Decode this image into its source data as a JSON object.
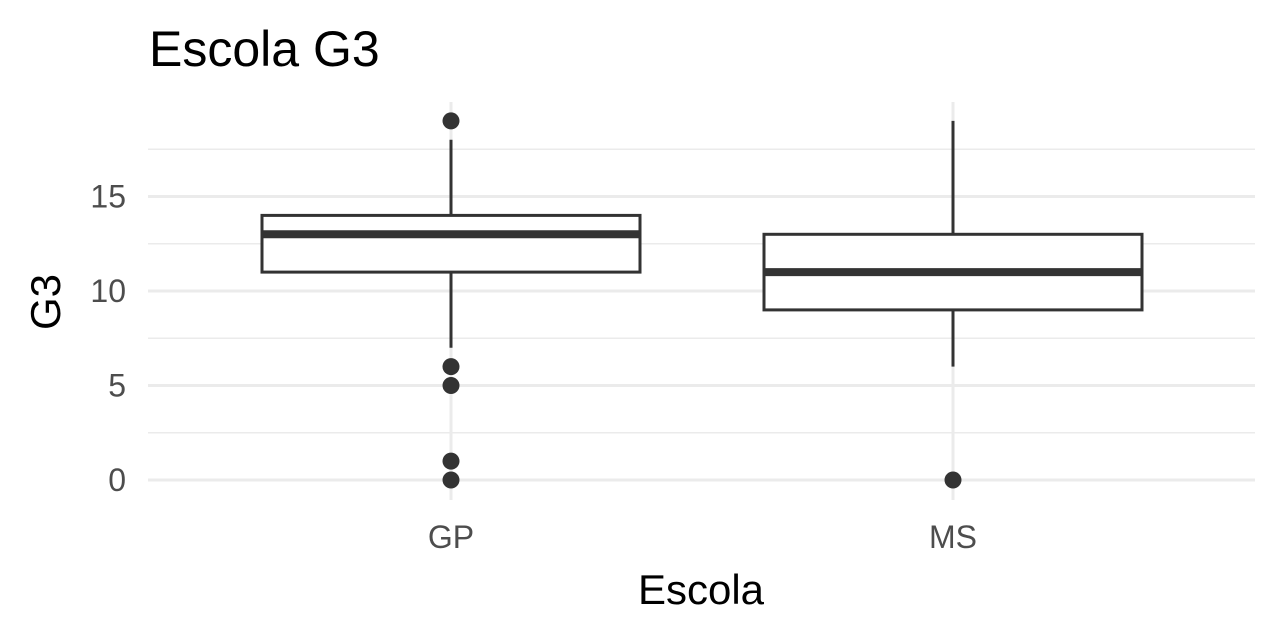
{
  "chart_data": {
    "type": "boxplot",
    "title": "Escola G3",
    "xlabel": "Escola",
    "ylabel": "G3",
    "categories": [
      "GP",
      "MS"
    ],
    "boxes": [
      {
        "category": "GP",
        "whisker_low": 7,
        "q1": 11,
        "median": 13,
        "q3": 14,
        "whisker_high": 18,
        "outliers": [
          19,
          6,
          5,
          1,
          0
        ]
      },
      {
        "category": "MS",
        "whisker_low": 6,
        "q1": 9,
        "median": 11,
        "q3": 13,
        "whisker_high": 19,
        "outliers": [
          0
        ]
      }
    ],
    "y_ticks": [
      0,
      5,
      10,
      15
    ],
    "y_tick_labels": [
      "0",
      "5",
      "10",
      "15"
    ],
    "ylim": [
      -1,
      20
    ],
    "grid": true,
    "legend": "none"
  }
}
